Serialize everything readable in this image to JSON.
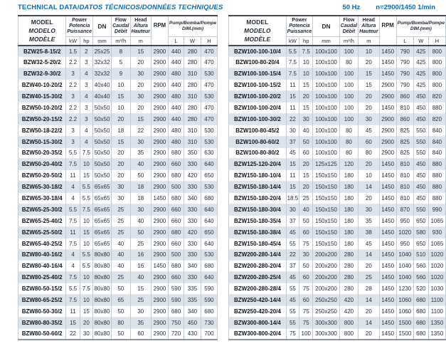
{
  "title": {
    "plain": "TECHNICAL DATA/",
    "italic": "DATOS TÉCNICOS/DONNÉES TECHNIQUES",
    "frequency": "50 Hz",
    "speed": "n=2900/1450 1/min"
  },
  "header": {
    "model": [
      "MODEL",
      "MODELO",
      "MODÈLE"
    ],
    "power": [
      "Power",
      "Potencia",
      "Puissance"
    ],
    "dn": "DN",
    "flow": [
      "Flow",
      "Caudal",
      "Débit"
    ],
    "head": [
      "Head",
      "Altura",
      "Hauteur"
    ],
    "rpm": "RPM",
    "dim": [
      "Pump/Bomba/Pompe",
      "DIM.(mm)"
    ],
    "units": [
      "kW",
      "hp",
      "mm",
      "m³/h",
      "m",
      "L",
      "W",
      "H"
    ]
  },
  "colors": {
    "accent_blue": "#0f6ab1",
    "row_shade": "#dde3ec",
    "grid_line": "#c3c9d2",
    "dark_rule": "#454b56"
  },
  "tables": {
    "left": {
      "rows": [
        [
          "BZW25-8-15/2",
          "1.5",
          "2",
          "25x25",
          "8",
          "15",
          "2900",
          "440",
          "280",
          "470"
        ],
        [
          "BZW32-5-20/2",
          "2.2",
          "3",
          "32x32",
          "5",
          "20",
          "2900",
          "440",
          "280",
          "470"
        ],
        [
          "BZW32-9-30/2",
          "3",
          "4",
          "32x32",
          "9",
          "30",
          "2900",
          "480",
          "310",
          "530"
        ],
        [
          "BZW40-10-20/2",
          "2.2",
          "3",
          "40x40",
          "10",
          "20",
          "2900",
          "440",
          "280",
          "470"
        ],
        [
          "BZW40-15-30/2",
          "3",
          "4",
          "40x40",
          "15",
          "30",
          "2900",
          "480",
          "310",
          "530"
        ],
        [
          "BZW50-10-20/2",
          "2.2",
          "3",
          "50x50",
          "10",
          "20",
          "2900",
          "440",
          "280",
          "470"
        ],
        [
          "BZW50-20-15/2",
          "2.2",
          "3",
          "50x50",
          "20",
          "15",
          "2900",
          "440",
          "280",
          "470"
        ],
        [
          "BZW50-18-22/2",
          "3",
          "4",
          "50x50",
          "18",
          "22",
          "2900",
          "480",
          "310",
          "530"
        ],
        [
          "BZW50-15-30/2",
          "3",
          "4",
          "50x50",
          "15",
          "30",
          "2900",
          "480",
          "310",
          "530"
        ],
        [
          "BZW50-20-35/2",
          "5.5",
          "7.5",
          "50x50",
          "20",
          "35",
          "2900",
          "680",
          "350",
          "630"
        ],
        [
          "BZW50-20-40/2",
          "7.5",
          "10",
          "50x50",
          "20",
          "40",
          "2900",
          "660",
          "330",
          "640"
        ],
        [
          "BZW50-20-50/2",
          "11",
          "15",
          "50x50",
          "20",
          "50",
          "2900",
          "680",
          "420",
          "650"
        ],
        [
          "BZW65-30-18/2",
          "4",
          "5.5",
          "65x65",
          "30",
          "18",
          "2900",
          "500",
          "330",
          "530"
        ],
        [
          "BZW65-30-18/4",
          "4",
          "5.5",
          "65x65",
          "30",
          "18",
          "1450",
          "680",
          "340",
          "680"
        ],
        [
          "BZW65-25-30/2",
          "5.5",
          "7.5",
          "65x65",
          "25",
          "30",
          "2900",
          "660",
          "330",
          "640"
        ],
        [
          "BZW65-25-40/2",
          "7.5",
          "10",
          "65x65",
          "25",
          "40",
          "2900",
          "660",
          "330",
          "640"
        ],
        [
          "BZW65-25-50/2",
          "11",
          "15",
          "65x65",
          "25",
          "50",
          "2900",
          "680",
          "420",
          "650"
        ],
        [
          "BZW65-40-25/2",
          "7.5",
          "10",
          "65x65",
          "40",
          "25",
          "2900",
          "660",
          "330",
          "640"
        ],
        [
          "BZW80-40-16/2",
          "4",
          "5.5",
          "80x80",
          "40",
          "16",
          "2900",
          "500",
          "330",
          "530"
        ],
        [
          "BZW80-40-16/4",
          "4",
          "5.5",
          "80x80",
          "40",
          "16",
          "1450",
          "680",
          "340",
          "680"
        ],
        [
          "BZW80-25-40/2",
          "7.5",
          "10",
          "80x80",
          "25",
          "40",
          "2900",
          "660",
          "330",
          "640"
        ],
        [
          "BZW80-50-15/2",
          "5.5",
          "7.5",
          "80x80",
          "50",
          "15",
          "2900",
          "590",
          "335",
          "590"
        ],
        [
          "BZW80-65-25/2",
          "7.5",
          "10",
          "80x80",
          "65",
          "25",
          "2900",
          "590",
          "335",
          "590"
        ],
        [
          "BZW80-50-30/2",
          "11",
          "15",
          "80x80",
          "50",
          "30",
          "2900",
          "680",
          "340",
          "680"
        ],
        [
          "BZW80-80-35/2",
          "15",
          "20",
          "80x80",
          "80",
          "35",
          "2900",
          "750",
          "450",
          "730"
        ],
        [
          "BZW80-50-60/2",
          "22",
          "30",
          "80x80",
          "50",
          "60",
          "2900",
          "720",
          "430",
          "700"
        ]
      ]
    },
    "right": {
      "rows": [
        [
          "BZW100-100-10/4",
          "5.5",
          "7.5",
          "100x100",
          "100",
          "10",
          "1450",
          "790",
          "425",
          "800"
        ],
        [
          "BZW100-80-20/4",
          "7.5",
          "10",
          "100x100",
          "80",
          "20",
          "1450",
          "790",
          "425",
          "800"
        ],
        [
          "BZW100-100-15/4",
          "7.5",
          "10",
          "100x100",
          "100",
          "15",
          "1450",
          "790",
          "425",
          "800"
        ],
        [
          "BZW100-100-15/2",
          "11",
          "15",
          "100x100",
          "100",
          "15",
          "2900",
          "790",
          "425",
          "800"
        ],
        [
          "BZW100-100-20/2",
          "15",
          "20",
          "100x100",
          "100",
          "20",
          "2900",
          "860",
          "450",
          "820"
        ],
        [
          "BZW100-100-20/4",
          "11",
          "15",
          "100x100",
          "100",
          "20",
          "1450",
          "810",
          "450",
          "880"
        ],
        [
          "BZW100-100-30/2",
          "22",
          "30",
          "100x100",
          "100",
          "30",
          "2900",
          "860",
          "450",
          "820"
        ],
        [
          "BZW100-80-45/2",
          "30",
          "40",
          "100x100",
          "80",
          "45",
          "2900",
          "825",
          "550",
          "840"
        ],
        [
          "BZW100-80-60/2",
          "37",
          "50",
          "100x100",
          "80",
          "60",
          "2900",
          "825",
          "550",
          "840"
        ],
        [
          "BZW100-80-80/2",
          "45",
          "60",
          "100x100",
          "80",
          "80",
          "2900",
          "825",
          "550",
          "840"
        ],
        [
          "BZW125-120-20/4",
          "15",
          "20",
          "125x125",
          "120",
          "20",
          "1450",
          "810",
          "450",
          "880"
        ],
        [
          "BZW150-180-10/4",
          "11",
          "15",
          "150x150",
          "180",
          "10",
          "1450",
          "810",
          "450",
          "880"
        ],
        [
          "BZW150-180-14/4",
          "15",
          "20",
          "150x150",
          "180",
          "14",
          "1450",
          "810",
          "450",
          "880"
        ],
        [
          "BZW150-180-20/4",
          "18.5",
          "25",
          "150x150",
          "180",
          "20",
          "1450",
          "810",
          "450",
          "880"
        ],
        [
          "BZW150-180-30/4",
          "30",
          "40",
          "150x150",
          "180",
          "30",
          "1450",
          "870",
          "550",
          "990"
        ],
        [
          "BZW150-180-35/4",
          "37",
          "50",
          "150x150",
          "180",
          "35",
          "1450",
          "950",
          "650",
          "1065"
        ],
        [
          "BZW150-180-38/4",
          "45",
          "60",
          "150x150",
          "180",
          "38",
          "1450",
          "1020",
          "580",
          "930"
        ],
        [
          "BZW150-180-45/4",
          "55",
          "75",
          "150x150",
          "180",
          "45",
          "1450",
          "950",
          "650",
          "1065"
        ],
        [
          "BZW200-280-14/4",
          "22",
          "30",
          "200x200",
          "280",
          "14",
          "1450",
          "1040",
          "510",
          "1020"
        ],
        [
          "BZW200-280-20/4",
          "37",
          "50",
          "200x200",
          "280",
          "20",
          "1450",
          "1040",
          "560",
          "1020"
        ],
        [
          "BZW200-280-25/4",
          "45",
          "60",
          "200x200",
          "280",
          "25",
          "1450",
          "1040",
          "560",
          "1020"
        ],
        [
          "BZW200-280-28/4",
          "55",
          "75",
          "200x200",
          "280",
          "28",
          "1450",
          "1230",
          "520",
          "1030"
        ],
        [
          "BZW250-420-14/4",
          "45",
          "60",
          "250x250",
          "420",
          "14",
          "1450",
          "1060",
          "680",
          "1100"
        ],
        [
          "BZW250-420-20/4",
          "55",
          "75",
          "250x250",
          "420",
          "20",
          "1450",
          "1060",
          "680",
          "1100"
        ],
        [
          "BZW300-800-14/4",
          "55",
          "75",
          "300x300",
          "800",
          "14",
          "1450",
          "1500",
          "680",
          "1350"
        ],
        [
          "BZW300-800-20/4",
          "75",
          "100",
          "300x300",
          "800",
          "20",
          "1450",
          "1500",
          "680",
          "1350"
        ]
      ]
    }
  }
}
